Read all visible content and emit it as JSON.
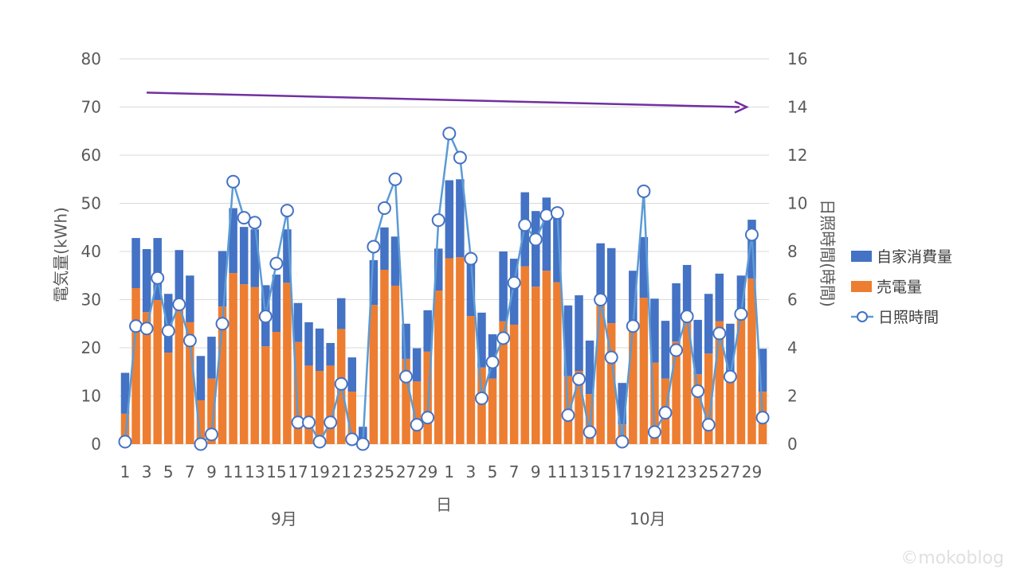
{
  "chart_data": {
    "type": "bar",
    "subtype": "stacked bar + line (secondary axis)",
    "x_label": "日",
    "groups": [
      {
        "label": "9月",
        "days": 30
      },
      {
        "label": "10月",
        "days": 30
      }
    ],
    "days": [
      1,
      2,
      3,
      4,
      5,
      6,
      7,
      8,
      9,
      10,
      11,
      12,
      13,
      14,
      15,
      16,
      17,
      18,
      19,
      20,
      21,
      22,
      23,
      24,
      25,
      26,
      27,
      28,
      29,
      30,
      1,
      2,
      3,
      4,
      5,
      6,
      7,
      8,
      9,
      10,
      11,
      12,
      13,
      14,
      15,
      16,
      17,
      18,
      19,
      20,
      21,
      22,
      23,
      24,
      25,
      26,
      27,
      28,
      29,
      30
    ],
    "x_tick_labels": [
      "1",
      "3",
      "5",
      "7",
      "9",
      "11",
      "13",
      "15",
      "17",
      "19",
      "21",
      "23",
      "25",
      "27",
      "29",
      "1",
      "3",
      "5",
      "7",
      "9",
      "11",
      "13",
      "15",
      "17",
      "19",
      "21",
      "23",
      "25",
      "27",
      "29"
    ],
    "y_left": {
      "label": "電気量(kWh)",
      "min": 0,
      "max": 80,
      "ticks": [
        0,
        10,
        20,
        30,
        40,
        50,
        60,
        70,
        80
      ]
    },
    "y_right": {
      "label": "日照時間(時間)",
      "min": 0,
      "max": 16,
      "ticks": [
        0,
        2,
        4,
        6,
        8,
        10,
        12,
        14,
        16
      ]
    },
    "legend_position": "right",
    "series": [
      {
        "name": "売電量",
        "type": "bar",
        "axis": "left",
        "color": "#ED7D31",
        "values": [
          6.3,
          32.4,
          27.4,
          29.9,
          19.0,
          28.0,
          25.3,
          9.1,
          13.6,
          28.6,
          35.5,
          33.2,
          32.6,
          20.3,
          23.3,
          33.5,
          21.2,
          16.3,
          15.2,
          16.3,
          23.9,
          10.9,
          0.0,
          28.9,
          36.2,
          32.9,
          17.7,
          13.0,
          19.2,
          31.9,
          38.6,
          38.8,
          26.6,
          15.9,
          13.6,
          25.5,
          24.8,
          36.9,
          32.7,
          36.0,
          33.6,
          14.1,
          15.2,
          10.4,
          29.0,
          25.1,
          4.1,
          25.5,
          30.4,
          16.9,
          13.6,
          21.3,
          26.0,
          14.5,
          18.8,
          25.5,
          13.0,
          27.0,
          34.4,
          10.9
        ]
      },
      {
        "name": "自家消費量",
        "type": "bar",
        "axis": "left",
        "color": "#4472C4",
        "values": [
          8.5,
          10.4,
          13.1,
          12.9,
          12.2,
          12.3,
          9.7,
          9.2,
          8.7,
          11.5,
          13.5,
          11.9,
          12.0,
          12.7,
          11.9,
          11.1,
          8.1,
          9.0,
          8.8,
          4.7,
          6.4,
          7.1,
          3.6,
          9.3,
          8.8,
          10.2,
          7.3,
          6.9,
          8.6,
          8.7,
          16.2,
          16.2,
          11.7,
          11.4,
          9.2,
          14.5,
          13.7,
          15.4,
          15.7,
          15.2,
          13.9,
          14.7,
          15.7,
          11.1,
          12.7,
          15.6,
          8.6,
          10.5,
          12.6,
          13.3,
          12.0,
          12.1,
          11.2,
          11.3,
          12.4,
          9.9,
          12.0,
          8.0,
          12.2,
          8.9
        ]
      },
      {
        "name": "日照時間",
        "type": "line",
        "axis": "right",
        "color": "#5B9BD5",
        "values": [
          0.1,
          4.9,
          4.8,
          6.9,
          4.7,
          5.8,
          4.3,
          0.0,
          0.4,
          5.0,
          10.9,
          9.4,
          9.2,
          5.3,
          7.5,
          9.7,
          0.9,
          0.9,
          0.1,
          0.9,
          2.5,
          0.2,
          0.0,
          8.2,
          9.8,
          11.0,
          2.8,
          0.8,
          1.1,
          9.3,
          12.9,
          11.9,
          7.7,
          1.9,
          3.4,
          4.4,
          6.7,
          9.1,
          8.5,
          9.5,
          9.6,
          1.2,
          2.7,
          0.5,
          6.0,
          3.6,
          0.1,
          4.9,
          10.5,
          0.5,
          1.3,
          3.9,
          5.3,
          2.2,
          0.8,
          4.6,
          2.8,
          5.4,
          8.7,
          1.1
        ]
      }
    ],
    "annotation": {
      "type": "arrow",
      "color": "#7030A0",
      "from_value": 14.6,
      "to_value": 14.0,
      "axis": "right"
    }
  },
  "watermark": "©mokoblog"
}
